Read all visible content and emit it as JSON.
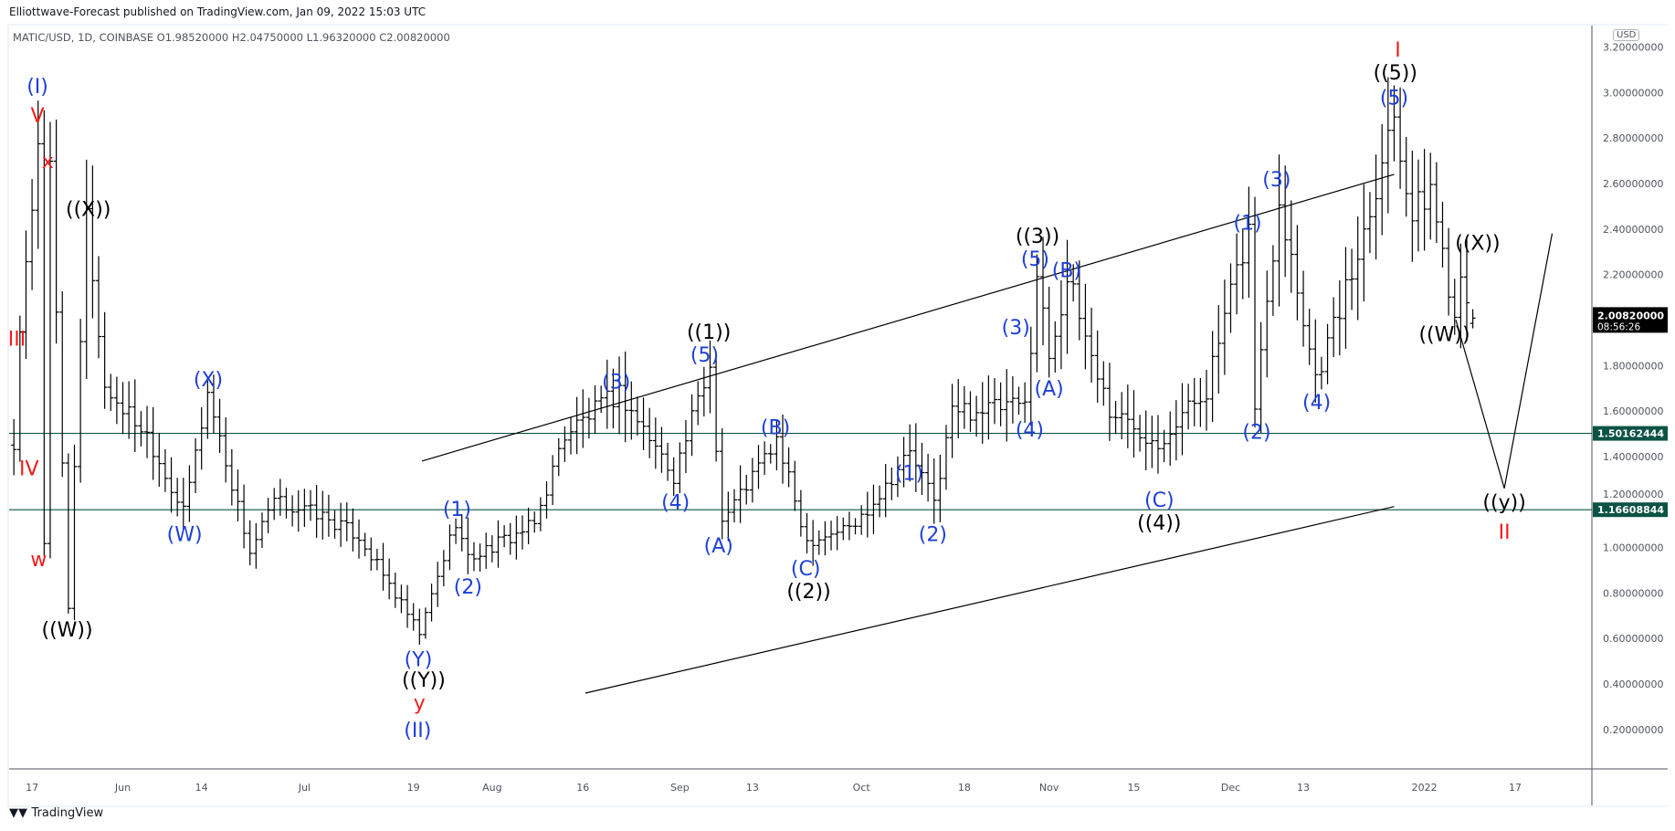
{
  "header": {
    "published": "Elliottwave-Forecast published on TradingView.com, Jan 09, 2022 15:03 UTC",
    "symbol_line": "MATIC/USD, 1D, COINBASE  O1.98520000  H2.04750000  L1.96320000  C2.00820000"
  },
  "currency_badge": "USD",
  "footer_logo": "TradingView",
  "chart_data": {
    "type": "ohlc",
    "title": "MATIC/USD, 1D, COINBASE",
    "ohlc_last": {
      "open": 1.9852,
      "high": 2.0475,
      "low": 1.9632,
      "close": 2.0082
    },
    "ylim": [
      0.05,
      3.25
    ],
    "y_ticks": [
      "3.20000000",
      "3.00000000",
      "2.80000000",
      "2.60000000",
      "2.40000000",
      "2.20000000",
      "1.80000000",
      "1.60000000",
      "1.40000000",
      "1.20000000",
      "1.00000000",
      "0.80000000",
      "0.60000000",
      "0.40000000",
      "0.20000000"
    ],
    "x_ticks": [
      {
        "label": "17",
        "day": 0
      },
      {
        "label": "Jun",
        "day": 15
      },
      {
        "label": "14",
        "day": 28
      },
      {
        "label": "Jul",
        "day": 45
      },
      {
        "label": "19",
        "day": 63
      },
      {
        "label": "Aug",
        "day": 76
      },
      {
        "label": "16",
        "day": 91
      },
      {
        "label": "Sep",
        "day": 107
      },
      {
        "label": "13",
        "day": 119
      },
      {
        "label": "Oct",
        "day": 137
      },
      {
        "label": "18",
        "day": 154
      },
      {
        "label": "Nov",
        "day": 168
      },
      {
        "label": "15",
        "day": 182
      },
      {
        "label": "Dec",
        "day": 198
      },
      {
        "label": "13",
        "day": 210
      },
      {
        "label": "2022",
        "day": 230
      },
      {
        "label": "17",
        "day": 245
      }
    ],
    "x_note": "day index relative to May 17, 2021",
    "price_path_keypoints": [
      [
        -3,
        1.45
      ],
      [
        -2,
        1.9
      ],
      [
        1,
        2.8
      ],
      [
        2,
        1.0
      ],
      [
        3,
        2.65
      ],
      [
        6,
        0.75
      ],
      [
        9,
        2.45
      ],
      [
        12,
        1.7
      ],
      [
        19,
        1.5
      ],
      [
        25,
        1.15
      ],
      [
        29,
        1.68
      ],
      [
        36,
        0.98
      ],
      [
        40,
        1.2
      ],
      [
        47,
        1.15
      ],
      [
        54,
        1.05
      ],
      [
        64,
        0.62
      ],
      [
        70,
        1.12
      ],
      [
        72,
        0.95
      ],
      [
        83,
        1.1
      ],
      [
        88,
        1.5
      ],
      [
        97,
        1.68
      ],
      [
        106,
        1.32
      ],
      [
        112,
        1.8
      ],
      [
        114,
        1.12
      ],
      [
        123,
        1.47
      ],
      [
        128,
        1.03
      ],
      [
        136,
        1.1
      ],
      [
        145,
        1.42
      ],
      [
        149,
        1.2
      ],
      [
        152,
        1.6
      ],
      [
        164,
        1.62
      ],
      [
        166,
        2.2
      ],
      [
        168,
        1.85
      ],
      [
        171,
        2.18
      ],
      [
        178,
        1.6
      ],
      [
        186,
        1.47
      ],
      [
        194,
        1.7
      ],
      [
        201,
        2.4
      ],
      [
        202,
        1.62
      ],
      [
        206,
        2.55
      ],
      [
        212,
        1.75
      ],
      [
        218,
        2.2
      ],
      [
        225,
        2.92
      ],
      [
        228,
        2.45
      ],
      [
        231,
        2.58
      ],
      [
        235,
        2.02
      ],
      [
        236,
        2.25
      ],
      [
        238,
        2.0082
      ]
    ],
    "current_price": {
      "value": "2.00820000",
      "countdown": "08:56:26"
    },
    "horizontal_levels": [
      {
        "value": 1.50162444,
        "label": "1.50162444",
        "color": "#0b5345"
      },
      {
        "value": 1.16608844,
        "label": "1.16608844",
        "color": "#0b5345"
      }
    ],
    "trendlines": [
      {
        "name": "channel-upper",
        "points": [
          [
            64.4,
            1.38
          ],
          [
            225,
            2.64
          ]
        ]
      },
      {
        "name": "channel-lower",
        "points": [
          [
            91.4,
            0.36
          ],
          [
            225,
            1.18
          ]
        ]
      },
      {
        "name": "projection",
        "points": [
          [
            235.2,
            2.0
          ],
          [
            243.2,
            1.26
          ],
          [
            251.1,
            2.38
          ]
        ]
      }
    ],
    "colors": {
      "blue": "#1e3fd8",
      "red": "#f21b1b",
      "black": "#000000"
    },
    "wave_labels": [
      {
        "text": "(I)",
        "c": "blue",
        "day": 0.9,
        "p": 3.03
      },
      {
        "text": "V",
        "c": "red",
        "day": 0.9,
        "p": 2.9
      },
      {
        "text": "x",
        "c": "red",
        "day": 2.6,
        "p": 2.7
      },
      {
        "text": "((X))",
        "c": "black",
        "day": 9.3,
        "p": 2.49
      },
      {
        "text": "III",
        "c": "red",
        "day": -2.5,
        "p": 1.92
      },
      {
        "text": "IV",
        "c": "red",
        "day": -0.5,
        "p": 1.35
      },
      {
        "text": "w",
        "c": "red",
        "day": 1.1,
        "p": 0.95
      },
      {
        "text": "((W))",
        "c": "black",
        "day": 5.8,
        "p": 0.64
      },
      {
        "text": "(X)",
        "c": "blue",
        "day": 29.1,
        "p": 1.74
      },
      {
        "text": "(W)",
        "c": "blue",
        "day": 25.2,
        "p": 1.06
      },
      {
        "text": "(1)",
        "c": "blue",
        "day": 70.2,
        "p": 1.17
      },
      {
        "text": "(2)",
        "c": "blue",
        "day": 72.0,
        "p": 0.83
      },
      {
        "text": "(Y)",
        "c": "blue",
        "day": 63.8,
        "p": 0.51
      },
      {
        "text": "((Y))",
        "c": "black",
        "day": 64.7,
        "p": 0.42
      },
      {
        "text": "y",
        "c": "red",
        "day": 64.0,
        "p": 0.32
      },
      {
        "text": "(II)",
        "c": "blue",
        "day": 63.7,
        "p": 0.2
      },
      {
        "text": "(3)",
        "c": "blue",
        "day": 96.5,
        "p": 1.73
      },
      {
        "text": "(4)",
        "c": "blue",
        "day": 106.3,
        "p": 1.2
      },
      {
        "text": "((1))",
        "c": "black",
        "day": 111.8,
        "p": 1.95
      },
      {
        "text": "(5)",
        "c": "blue",
        "day": 111.1,
        "p": 1.85
      },
      {
        "text": "(A)",
        "c": "blue",
        "day": 113.4,
        "p": 1.01
      },
      {
        "text": "(B)",
        "c": "blue",
        "day": 122.8,
        "p": 1.53
      },
      {
        "text": "(C)",
        "c": "blue",
        "day": 127.8,
        "p": 0.91
      },
      {
        "text": "((2))",
        "c": "black",
        "day": 128.3,
        "p": 0.81
      },
      {
        "text": "(1)",
        "c": "blue",
        "day": 144.9,
        "p": 1.33
      },
      {
        "text": "(2)",
        "c": "blue",
        "day": 148.8,
        "p": 1.06
      },
      {
        "text": "((3))",
        "c": "black",
        "day": 166.1,
        "p": 2.37
      },
      {
        "text": "(5)",
        "c": "blue",
        "day": 165.7,
        "p": 2.27
      },
      {
        "text": "(3)",
        "c": "blue",
        "day": 162.5,
        "p": 1.97
      },
      {
        "text": "(B)",
        "c": "blue",
        "day": 170.9,
        "p": 2.22
      },
      {
        "text": "(A)",
        "c": "blue",
        "day": 168.0,
        "p": 1.7
      },
      {
        "text": "(4)",
        "c": "blue",
        "day": 164.8,
        "p": 1.52
      },
      {
        "text": "(C)",
        "c": "blue",
        "day": 186.2,
        "p": 1.21
      },
      {
        "text": "((4))",
        "c": "black",
        "day": 186.2,
        "p": 1.11
      },
      {
        "text": "(1)",
        "c": "blue",
        "day": 200.8,
        "p": 2.43
      },
      {
        "text": "(3)",
        "c": "blue",
        "day": 205.6,
        "p": 2.62
      },
      {
        "text": "(2)",
        "c": "blue",
        "day": 202.3,
        "p": 1.51
      },
      {
        "text": "(4)",
        "c": "blue",
        "day": 212.2,
        "p": 1.64
      },
      {
        "text": "I",
        "c": "red",
        "day": 225.6,
        "p": 3.19
      },
      {
        "text": "((5))",
        "c": "black",
        "day": 225.2,
        "p": 3.09
      },
      {
        "text": "(5)",
        "c": "blue",
        "day": 225.0,
        "p": 2.98
      },
      {
        "text": "((X))",
        "c": "black",
        "day": 238.8,
        "p": 2.34
      },
      {
        "text": "((W))",
        "c": "black",
        "day": 233.3,
        "p": 1.94
      },
      {
        "text": "((y))",
        "c": "black",
        "day": 243.2,
        "p": 1.2
      },
      {
        "text": "II",
        "c": "red",
        "day": 243.2,
        "p": 1.07
      }
    ]
  }
}
